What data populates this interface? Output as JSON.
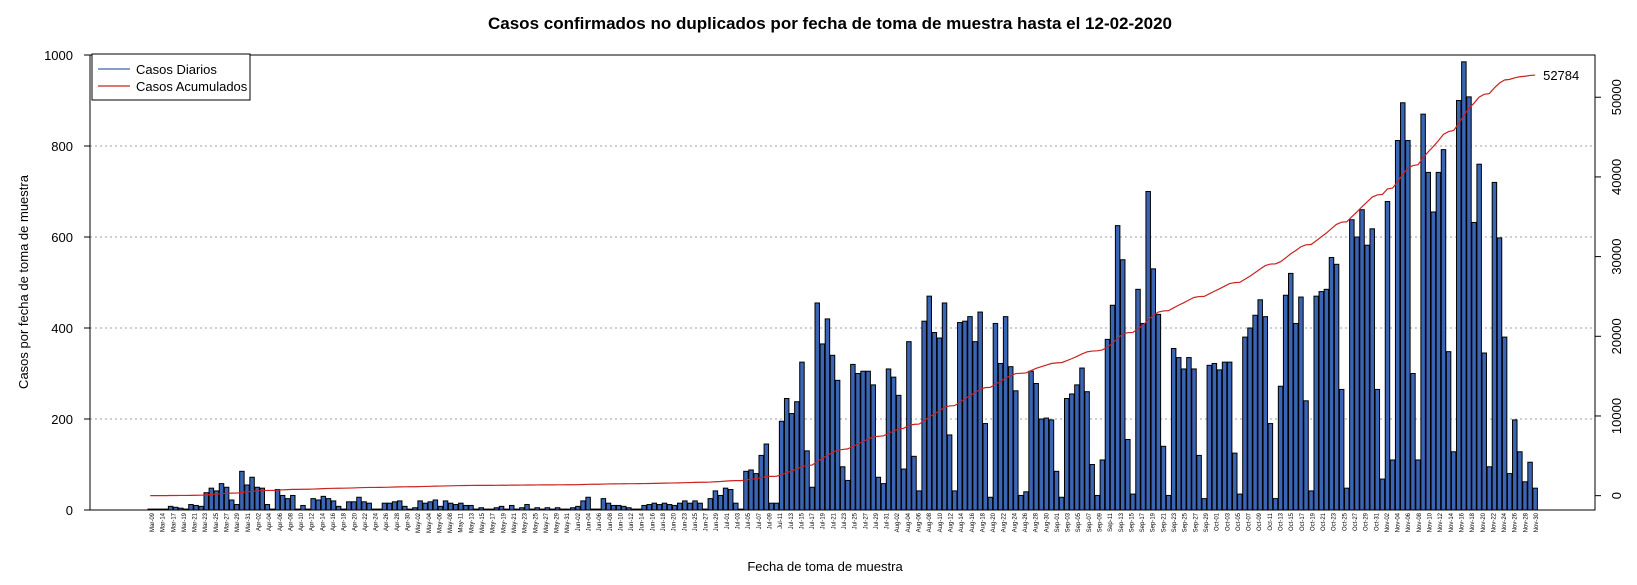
{
  "chart_data": {
    "type": "bar",
    "title": "Casos confirmados no duplicados por fecha de toma de muestra hasta el 12-02-2020",
    "xlabel": "Fecha de toma de muestra",
    "ylabel": "Casos por fecha de toma de muestra",
    "ylim": [
      0,
      1000
    ],
    "y_ticks": [
      0,
      200,
      400,
      600,
      800,
      1000
    ],
    "y2lim": [
      -1800,
      55300
    ],
    "y2_ticks": [
      0,
      10000,
      20000,
      30000,
      40000,
      50000
    ],
    "grid": "horizontal dotted",
    "legend_position": "top-left",
    "date_labels": [
      "Mar-09",
      "Mar-14",
      "Mar-17",
      "Mar-19",
      "Mar-21",
      "Mar-23",
      "Mar-25",
      "Mar-27",
      "Mar-29",
      "Mar-31",
      "Apr-02",
      "Apr-04",
      "Apr-06",
      "Apr-08",
      "Apr-10",
      "Apr-12",
      "Apr-14",
      "Apr-16",
      "Apr-18",
      "Apr-20",
      "Apr-22",
      "Apr-24",
      "Apr-26",
      "Apr-28",
      "Apr-30",
      "May-02",
      "May-04",
      "May-06",
      "May-08",
      "May-11",
      "May-13",
      "May-15",
      "May-17",
      "May-19",
      "May-21",
      "May-23",
      "May-25",
      "May-27",
      "May-29",
      "May-31",
      "Jun-02",
      "Jun-04",
      "Jun-06",
      "Jun-08",
      "Jun-10",
      "Jun-12",
      "Jun-14",
      "Jun-16",
      "Jun-18",
      "Jun-20",
      "Jun-23",
      "Jun-25",
      "Jun-27",
      "Jun-29",
      "Jul-01",
      "Jul-03",
      "Jul-05",
      "Jul-07",
      "Jul-09",
      "Jul-11",
      "Jul-13",
      "Jul-15",
      "Jul-17",
      "Jul-19",
      "Jul-21",
      "Jul-23",
      "Jul-25",
      "Jul-27",
      "Jul-29",
      "Jul-31",
      "Aug-02",
      "Aug-04",
      "Aug-06",
      "Aug-08",
      "Aug-10",
      "Aug-12",
      "Aug-14",
      "Aug-16",
      "Aug-18",
      "Aug-20",
      "Aug-22",
      "Aug-24",
      "Aug-26",
      "Aug-28",
      "Aug-30",
      "Sep-01",
      "Sep-03",
      "Sep-05",
      "Sep-07",
      "Sep-09",
      "Sep-11",
      "Sep-13",
      "Sep-15",
      "Sep-17",
      "Sep-19",
      "Sep-21",
      "Sep-23",
      "Sep-25",
      "Sep-27",
      "Sep-29",
      "Oct-01",
      "Oct-03",
      "Oct-05",
      "Oct-07",
      "Oct-09",
      "Oct-11",
      "Oct-13",
      "Oct-15",
      "Oct-17",
      "Oct-19",
      "Oct-21",
      "Oct-23",
      "Oct-25",
      "Oct-27",
      "Oct-29",
      "Oct-31",
      "Nov-02",
      "Nov-04",
      "Nov-06",
      "Nov-08",
      "Nov-10",
      "Nov-12",
      "Nov-14",
      "Nov-16",
      "Nov-18",
      "Nov-20",
      "Nov-22",
      "Nov-24",
      "Nov-26",
      "Nov-28",
      "Nov-30"
    ],
    "series": [
      {
        "name": "Casos Diarios",
        "type": "bar",
        "color": "#3a64b4",
        "values": [
          2,
          2,
          2,
          2,
          8,
          6,
          4,
          2,
          12,
          10,
          8,
          38,
          48,
          42,
          58,
          50,
          22,
          12,
          85,
          55,
          72,
          50,
          48,
          12,
          2,
          45,
          32,
          25,
          32,
          2,
          10,
          2,
          25,
          22,
          30,
          25,
          20,
          8,
          2,
          18,
          18,
          28,
          18,
          15,
          2,
          2,
          15,
          15,
          18,
          20,
          8,
          2,
          5,
          20,
          15,
          18,
          22,
          8,
          20,
          15,
          12,
          15,
          10,
          10,
          2,
          5,
          2,
          2,
          5,
          8,
          2,
          10,
          2,
          5,
          12,
          2,
          5,
          2,
          5,
          2,
          5,
          2,
          2,
          5,
          8,
          20,
          28,
          2,
          2,
          25,
          15,
          10,
          10,
          8,
          5,
          2,
          2,
          10,
          12,
          15,
          12,
          15,
          12,
          10,
          15,
          20,
          15,
          20,
          15,
          2,
          25,
          42,
          32,
          48,
          45,
          15,
          2,
          85,
          88,
          80,
          120,
          145,
          15,
          15,
          195,
          245,
          212,
          238,
          325,
          130,
          50,
          455,
          365,
          420,
          340,
          285,
          95,
          65,
          320,
          300,
          305,
          305,
          275,
          72,
          58,
          310,
          292,
          252,
          90,
          370,
          118,
          42,
          415,
          470,
          390,
          378,
          455,
          165,
          42,
          412,
          415,
          425,
          370,
          435,
          190,
          28,
          410,
          322,
          425,
          315,
          262,
          32,
          40,
          305,
          278,
          200,
          202,
          198,
          85,
          28,
          245,
          255,
          275,
          312,
          260,
          100,
          32,
          110,
          375,
          450,
          625,
          550,
          155,
          35,
          485,
          410,
          700,
          530,
          430,
          140,
          32,
          355,
          335,
          310,
          335,
          310,
          120,
          25,
          318,
          322,
          308,
          325,
          325,
          125,
          35,
          380,
          400,
          428,
          462,
          425,
          190,
          25,
          272,
          472,
          520,
          410,
          468,
          240,
          42,
          470,
          480,
          485,
          555,
          540,
          265,
          48,
          638,
          600,
          660,
          582,
          618,
          265,
          68,
          678,
          110,
          812,
          895,
          812,
          300,
          110,
          870,
          742,
          655,
          742,
          792,
          348,
          128,
          900,
          985,
          908,
          632,
          760,
          345,
          95,
          720,
          598,
          380,
          80,
          198,
          128,
          62,
          105,
          48
        ]
      },
      {
        "name": "Casos Acumulados",
        "type": "line",
        "color": "#cc2222",
        "end_value": 52784
      }
    ]
  }
}
